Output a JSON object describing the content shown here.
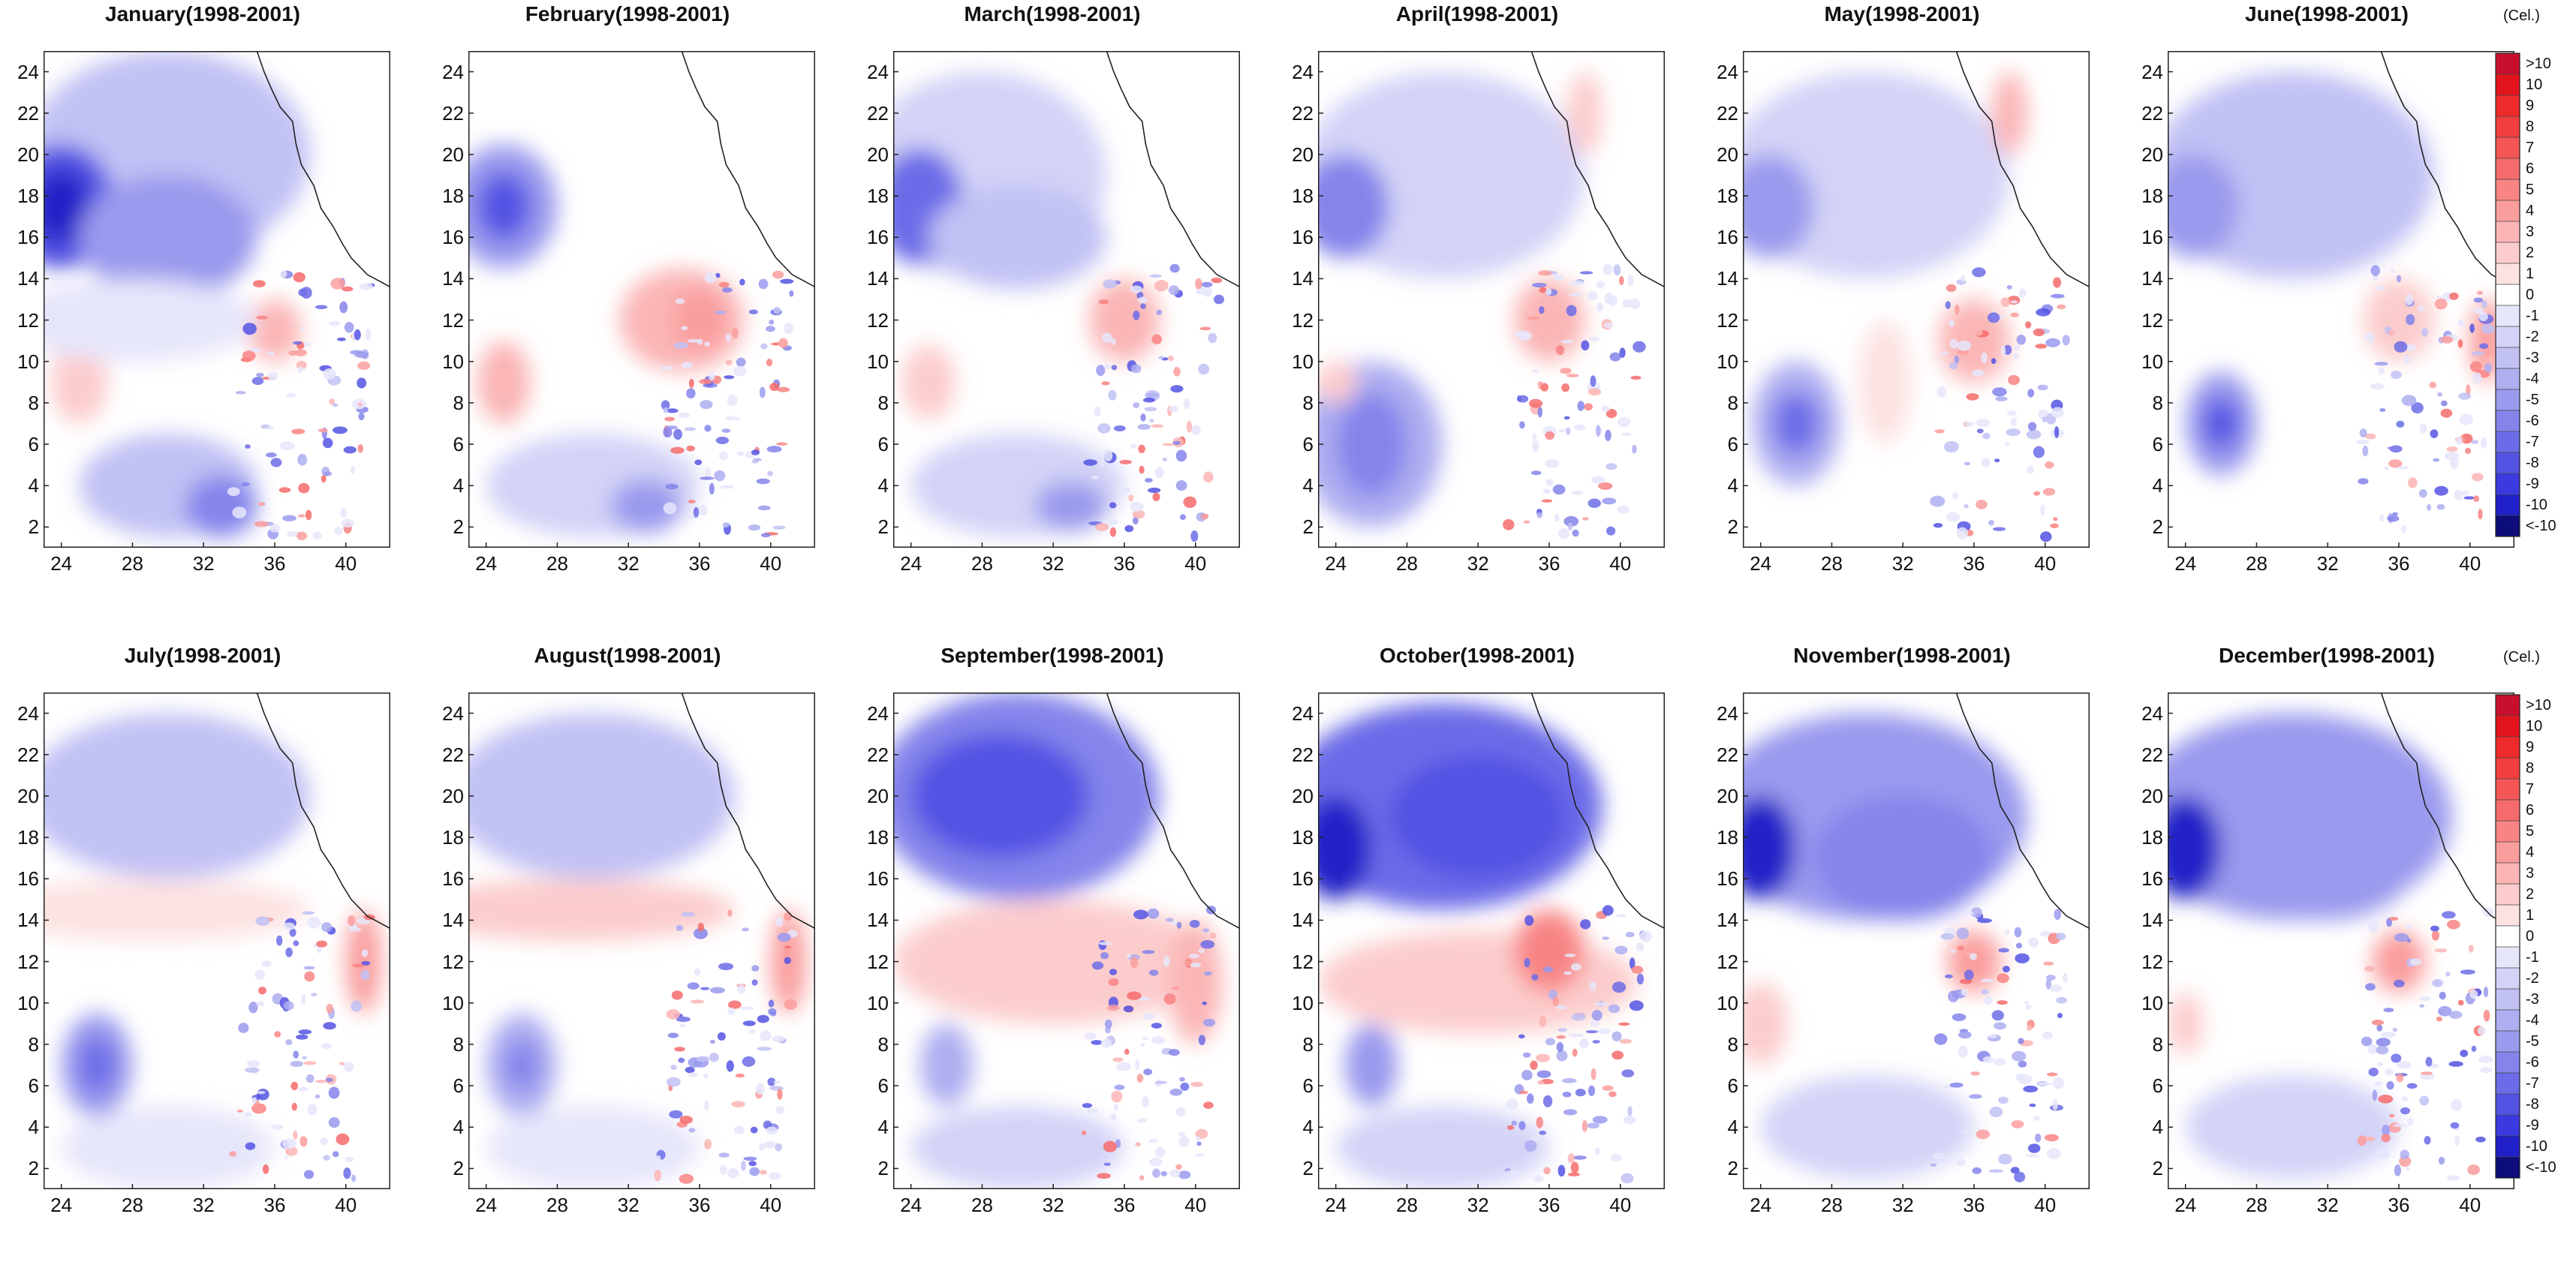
{
  "figure": {
    "panels": [
      {
        "title": "January(1998-2001)",
        "pattern": "jan"
      },
      {
        "title": "February(1998-2001)",
        "pattern": "feb"
      },
      {
        "title": "March(1998-2001)",
        "pattern": "mar"
      },
      {
        "title": "April(1998-2001)",
        "pattern": "apr"
      },
      {
        "title": "May(1998-2001)",
        "pattern": "may"
      },
      {
        "title": "June(1998-2001)",
        "pattern": "jun"
      },
      {
        "title": "July(1998-2001)",
        "pattern": "jul"
      },
      {
        "title": "August(1998-2001)",
        "pattern": "aug"
      },
      {
        "title": "September(1998-2001)",
        "pattern": "sep"
      },
      {
        "title": "October(1998-2001)",
        "pattern": "oct"
      },
      {
        "title": "November(1998-2001)",
        "pattern": "nov"
      },
      {
        "title": "December(1998-2001)",
        "pattern": "dec"
      }
    ],
    "y_ticks": [
      "24",
      "22",
      "20",
      "18",
      "16",
      "14",
      "12",
      "10",
      "8",
      "6",
      "4",
      "2"
    ],
    "x_ticks": [
      "24",
      "28",
      "32",
      "36",
      "40"
    ],
    "colorbar": {
      "unit": "(Cel.)",
      "labels": [
        ">10",
        "10",
        "9",
        "8",
        "7",
        "6",
        "5",
        "4",
        "3",
        "2",
        "1",
        "0",
        "-1",
        "-2",
        "-3",
        "-4",
        "-5",
        "-6",
        "-7",
        "-8",
        "-9",
        "-10",
        "<-10"
      ],
      "colors": [
        "#c8102e",
        "#e3131c",
        "#ee2a2a",
        "#f23e3e",
        "#f45555",
        "#f66b6b",
        "#f88484",
        "#fa9d9d",
        "#fbb5b5",
        "#fccccc",
        "#fde2e2",
        "#ffffff",
        "#e6e6fb",
        "#d3d3f7",
        "#c1c1f4",
        "#aeaef1",
        "#9a9aee",
        "#8484eb",
        "#6c6ce8",
        "#5353e4",
        "#3a3ae0",
        "#2020c8",
        "#0d0d7a"
      ]
    }
  }
}
